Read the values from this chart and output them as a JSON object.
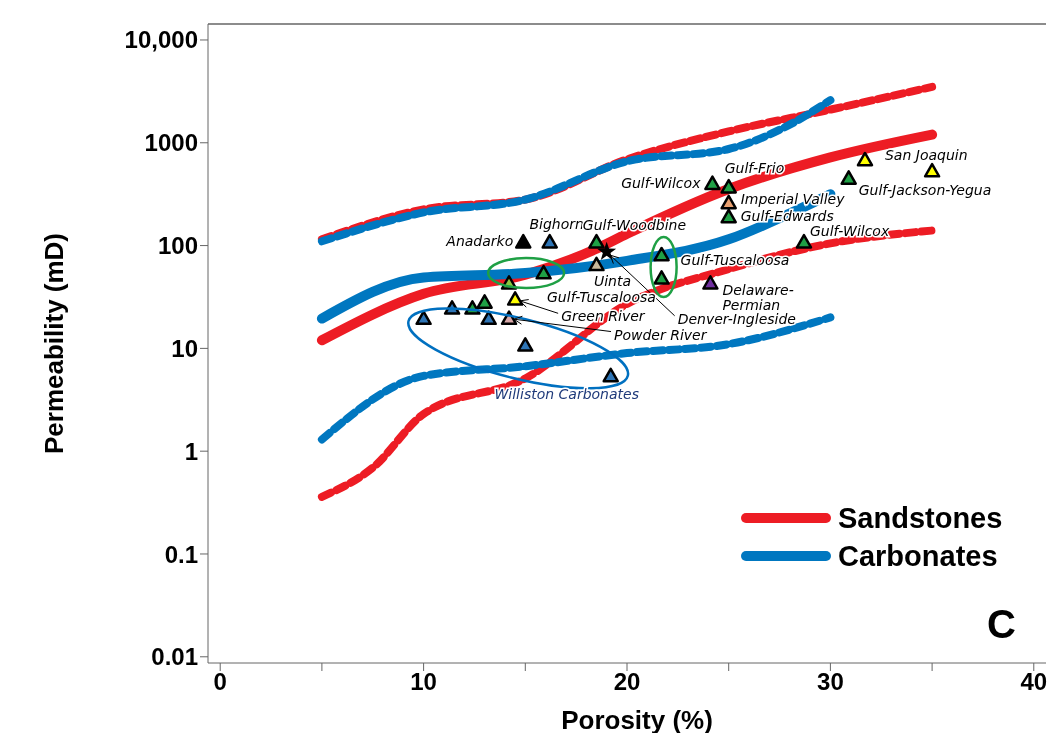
{
  "chart_data": {
    "type": "line",
    "xlabel": "Porosity (%)",
    "ylabel": "Permeability (mD)",
    "log": "y",
    "grid": false,
    "legend": "bottom right",
    "xlim": [
      -0.6,
      40.6
    ],
    "xticks": [
      0,
      {
        "value": 5,
        "label": null
      },
      10,
      {
        "value": 15,
        "label": null
      },
      20,
      {
        "value": 25,
        "label": null
      },
      30,
      {
        "value": 35,
        "label": null
      },
      40
    ],
    "ylim": [
      0.0087,
      14300
    ],
    "yticks": [
      {
        "value": 10000,
        "label": "10,000"
      },
      1000,
      100,
      10,
      1,
      0.1,
      0.01
    ],
    "series": [
      {
        "name": "Sandstones",
        "line_style": "solid",
        "color": "#ed1c24",
        "x": [
          5,
          10,
          15,
          18.5,
          20,
          25,
          30,
          35
        ],
        "values": [
          12,
          34,
          52,
          93,
          130,
          355,
          720,
          1200
        ]
      },
      {
        "name": "Carbonates",
        "line_style": "solid",
        "color": "#0077c0",
        "x": [
          5,
          10,
          15,
          20,
          25,
          28,
          30
        ],
        "values": [
          19.5,
          49,
          54,
          71,
          115,
          205,
          316
        ]
      },
      {
        "line_style": "dashed",
        "color": "#ed1c24",
        "x": [
          5,
          10,
          15,
          20,
          25,
          30,
          35
        ],
        "values": [
          115,
          225,
          280,
          690,
          1290,
          2100,
          3500
        ]
      },
      {
        "line_style": "dashed",
        "color": "#0077c0",
        "x": [
          5,
          10,
          15,
          20,
          25,
          28,
          30
        ],
        "values": [
          110,
          210,
          280,
          660,
          870,
          1500,
          2600
        ]
      },
      {
        "line_style": "dashed",
        "color": "#ed1c24",
        "x": [
          5,
          7.5,
          10,
          15,
          20,
          25,
          30,
          35
        ],
        "values": [
          0.36,
          0.69,
          2.3,
          5.1,
          27,
          59,
          105,
          140
        ]
      },
      {
        "line_style": "dashed",
        "color": "#0077c0",
        "x": [
          5,
          10,
          15,
          20,
          25,
          30
        ],
        "values": [
          1.3,
          5.4,
          6.7,
          9,
          11,
          20
        ]
      },
      {
        "type": "scatter",
        "marker": "triangle",
        "x": [
          14.9,
          16.2,
          18.5,
          18.5,
          14.2,
          15.9,
          14.5,
          10,
          11.4,
          12.4,
          13,
          13.2,
          14.2,
          15,
          19.2,
          21.7,
          21.7,
          24.1,
          24.2,
          25,
          25,
          25,
          28.7,
          30.9,
          31.7,
          35
        ],
        "values": [
          108,
          108,
          108,
          65,
          43,
          54,
          30,
          19.5,
          24.5,
          24.5,
          28,
          19.5,
          19.5,
          10.7,
          5.4,
          81,
          48,
          43,
          400,
          370,
          260,
          190,
          108,
          450,
          680,
          530
        ],
        "colors": [
          "#000000",
          "#2e75b6",
          "#1fa045",
          "#c8b89a",
          "#8dc63f",
          "#1fa045",
          "#ffff00",
          "#2e75b6",
          "#2e75b6",
          "#1fa045",
          "#1fa045",
          "#2e75b6",
          "#d9a8a8",
          "#2e75b6",
          "#2e75b6",
          "#1fa045",
          "#1fa045",
          "#7030a0",
          "#1fa045",
          "#1fa045",
          "#e8a070",
          "#1fa045",
          "#1fa045",
          "#1fa045",
          "#ffff00",
          "#ffff00"
        ]
      },
      {
        "type": "scatter",
        "marker": "star",
        "color": "#000000",
        "x": [
          19
        ],
        "values": [
          87
        ]
      }
    ],
    "annotations": [
      {
        "text": "Anadarko",
        "x": 14.9,
        "y": 108
      },
      {
        "text": "Bighorn",
        "x": 16.2,
        "y": 108
      },
      {
        "text": "Gulf-Woodbine",
        "x": 18.5,
        "y": 108
      },
      {
        "text": "Denver-Ingleside",
        "x": 19,
        "y": 87
      },
      {
        "text": "Uinta",
        "x": 18.5,
        "y": 65
      },
      {
        "text": "Gulf-Tuscaloosa",
        "x": 14.2,
        "y": 43
      },
      {
        "text": "Green River",
        "x": 14.5,
        "y": 30
      },
      {
        "text": "Powder River",
        "x": 14.2,
        "y": 19.5
      },
      {
        "text": "Williston Carbonates",
        "x": 19.2,
        "y": 5.4
      },
      {
        "text": "Gulf-Tuscaloosa",
        "x": 21.7,
        "y": 81
      },
      {
        "text": "Delaware-Permian",
        "x": 24.1,
        "y": 43
      },
      {
        "text": "Gulf-Wilcox",
        "x": 24.2,
        "y": 400
      },
      {
        "text": "Gulf-Frio",
        "x": 25,
        "y": 370
      },
      {
        "text": "Imperial Valley",
        "x": 25,
        "y": 260
      },
      {
        "text": "Gulf-Edwards",
        "x": 25,
        "y": 190
      },
      {
        "text": "Gulf-Wilcox",
        "x": 28.7,
        "y": 108
      },
      {
        "text": "Gulf-Jackson-Yegua",
        "x": 30.9,
        "y": 450
      },
      {
        "text": "San Joaquin",
        "x": 31.7,
        "y": 680
      },
      "C"
    ]
  }
}
